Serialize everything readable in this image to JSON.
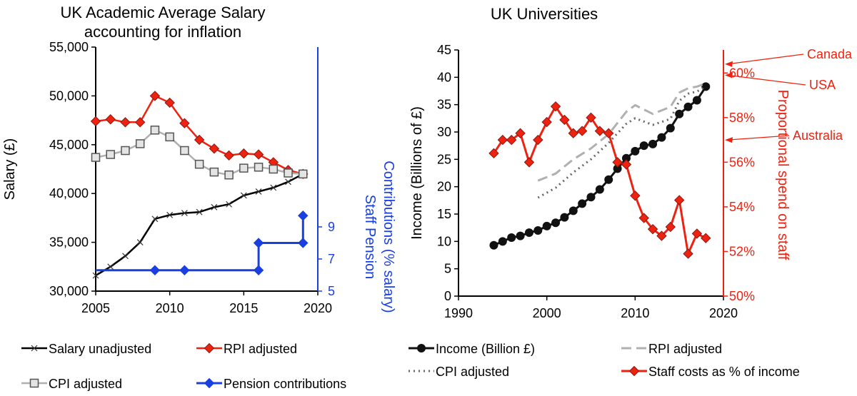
{
  "colors": {
    "black": "#000000",
    "red": "#ee2211",
    "grey": "#b0b0b0",
    "darkgrey": "#666666",
    "blue": "#1a3fe0"
  },
  "chart_data": [
    {
      "type": "line",
      "title": [
        "UK Academic Average Salary",
        "accounting for inflation"
      ],
      "xlabel": "",
      "ylabel": "Salary (£)",
      "y2label": [
        "Staff Pension",
        "Contributions (% salary)"
      ],
      "xlim": [
        2005,
        2020
      ],
      "ylim": [
        30000,
        55000
      ],
      "y2lim": [
        5,
        11
      ],
      "xticks": [
        "2005",
        "2010",
        "2015",
        "2020"
      ],
      "yticks": [
        "30,000",
        "35,000",
        "40,000",
        "45,000",
        "50,000",
        "55,000"
      ],
      "y2ticks": [
        "5",
        "7",
        "9"
      ],
      "legend_position": "bottom",
      "x": [
        2005,
        2006,
        2007,
        2008,
        2009,
        2010,
        2011,
        2012,
        2013,
        2014,
        2015,
        2016,
        2017,
        2018,
        2019
      ],
      "series": [
        {
          "name": "Salary unadjusted",
          "axis": "left",
          "marker": "x",
          "values": [
            31600,
            32500,
            33600,
            35000,
            37400,
            37800,
            38000,
            38100,
            38600,
            38900,
            39800,
            40200,
            40600,
            41200,
            42000
          ]
        },
        {
          "name": "RPI adjusted",
          "axis": "left",
          "marker": "diamond",
          "values": [
            47400,
            47600,
            47300,
            47300,
            50000,
            49300,
            47200,
            45500,
            44600,
            43900,
            44100,
            44000,
            43200,
            42400,
            42000
          ]
        },
        {
          "name": "CPI adjusted",
          "axis": "left",
          "marker": "square",
          "values": [
            43700,
            44000,
            44400,
            45100,
            46500,
            45800,
            44400,
            43000,
            42200,
            41900,
            42600,
            42700,
            42500,
            42100,
            42000
          ]
        },
        {
          "name": "Pension contributions",
          "axis": "right",
          "marker": "diamond",
          "step": true,
          "points": [
            [
              2005,
              6.3
            ],
            [
              2016,
              6.3
            ],
            [
              2016,
              8.0
            ],
            [
              2019,
              8.0
            ],
            [
              2019,
              9.7
            ]
          ],
          "marker_points": [
            [
              2009,
              6.3
            ],
            [
              2011,
              6.3
            ],
            [
              2016,
              6.3
            ],
            [
              2016,
              8.0
            ],
            [
              2019,
              8.0
            ],
            [
              2019,
              9.7
            ]
          ]
        }
      ]
    },
    {
      "type": "line",
      "title": [
        "UK Universities"
      ],
      "xlabel": "",
      "ylabel": "Income (Billions of £)",
      "y2label": [
        "Proportional spend on staff"
      ],
      "xlim": [
        1990,
        2020
      ],
      "ylim": [
        0,
        45
      ],
      "y2lim": [
        50,
        61
      ],
      "xticks": [
        "1990",
        "2000",
        "2010",
        "2020"
      ],
      "yticks": [
        "0",
        "5",
        "10",
        "15",
        "20",
        "25",
        "30",
        "35",
        "40",
        "45"
      ],
      "y2ticks": [
        "50%",
        "52%",
        "54%",
        "56%",
        "58%",
        "60%"
      ],
      "legend_position": "bottom",
      "series": [
        {
          "name": "Income (Billion £)",
          "axis": "left",
          "marker": "circle",
          "x": [
            1994,
            1995,
            1996,
            1997,
            1998,
            1999,
            2000,
            2001,
            2002,
            2003,
            2004,
            2005,
            2006,
            2007,
            2008,
            2009,
            2010,
            2011,
            2012,
            2013,
            2014,
            2015,
            2016,
            2017,
            2018
          ],
          "values": [
            9.3,
            10.0,
            10.7,
            11.0,
            11.6,
            12.0,
            12.8,
            13.4,
            14.4,
            15.6,
            16.9,
            18.1,
            19.5,
            21.3,
            23.3,
            25.2,
            26.5,
            27.5,
            27.8,
            29.0,
            30.7,
            33.3,
            34.6,
            35.8,
            38.3
          ]
        },
        {
          "name": "RPI adjusted",
          "axis": "left",
          "marker": "none",
          "dash": "dashed",
          "x": [
            1999,
            2001,
            2003,
            2005,
            2007,
            2009,
            2010,
            2012,
            2014,
            2015,
            2016,
            2017,
            2018
          ],
          "values": [
            21.1,
            22.4,
            25.0,
            27.0,
            29.6,
            33.7,
            34.9,
            33.3,
            34.6,
            37.2,
            38.0,
            38.3,
            38.9
          ]
        },
        {
          "name": "CPI adjusted",
          "axis": "left",
          "marker": "none",
          "dash": "dotted",
          "x": [
            1999,
            2001,
            2003,
            2005,
            2007,
            2009,
            2010,
            2012,
            2014,
            2015,
            2016,
            2017,
            2018
          ],
          "values": [
            18.0,
            19.8,
            22.6,
            25.0,
            28.0,
            31.5,
            32.5,
            31.3,
            32.4,
            35.7,
            37.0,
            37.4,
            38.3
          ]
        },
        {
          "name": "Staff costs as % of income",
          "axis": "right",
          "marker": "diamond",
          "x": [
            1994,
            1995,
            1996,
            1997,
            1998,
            1999,
            2000,
            2001,
            2002,
            2003,
            2004,
            2005,
            2006,
            2007,
            2008,
            2009,
            2010,
            2011,
            2012,
            2013,
            2014,
            2015,
            2016,
            2017,
            2018
          ],
          "values": [
            56.4,
            57.0,
            57.0,
            57.3,
            56.0,
            57.0,
            57.8,
            58.5,
            57.9,
            57.3,
            57.4,
            58.0,
            57.4,
            57.3,
            56.0,
            55.9,
            54.5,
            53.5,
            53.0,
            52.7,
            53.1,
            54.3,
            51.9,
            52.8,
            52.6
          ]
        }
      ],
      "annotations": [
        {
          "text": "Canada",
          "value": 60.4
        },
        {
          "text": "USA",
          "value": 59.9
        },
        {
          "text": "Australia",
          "value": 57.0
        }
      ]
    }
  ]
}
